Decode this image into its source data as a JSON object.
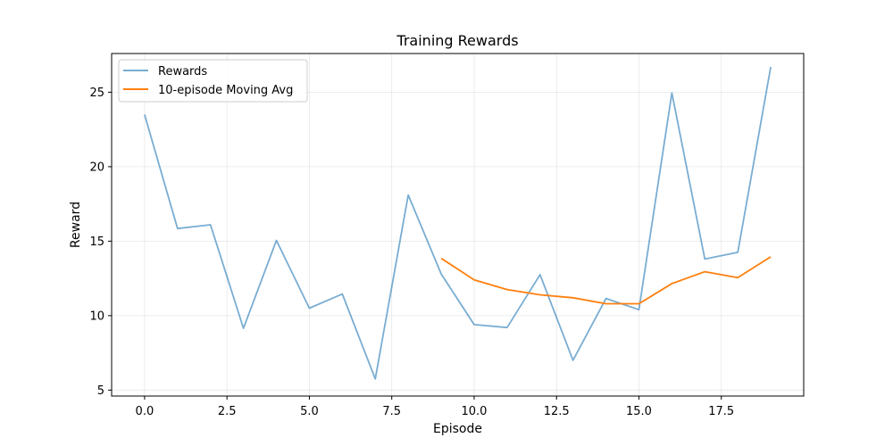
{
  "chart_data": {
    "type": "line",
    "title": "Training Rewards",
    "xlabel": "Episode",
    "ylabel": "Reward",
    "xlim": [
      -1,
      20
    ],
    "ylim": [
      4.6,
      27.6
    ],
    "xticks": [
      0.0,
      2.5,
      5.0,
      7.5,
      10.0,
      12.5,
      15.0,
      17.5
    ],
    "xtick_labels": [
      "0.0",
      "2.5",
      "5.0",
      "7.5",
      "10.0",
      "12.5",
      "15.0",
      "17.5"
    ],
    "yticks": [
      5,
      10,
      15,
      20,
      25
    ],
    "ytick_labels": [
      "5",
      "10",
      "15",
      "20",
      "25"
    ],
    "grid": true,
    "legend_position": "top-left",
    "series": [
      {
        "name": "Rewards",
        "color": "#1f77b4",
        "opacity": 0.6,
        "x": [
          0,
          1,
          2,
          3,
          4,
          5,
          6,
          7,
          8,
          9,
          10,
          11,
          12,
          13,
          14,
          15,
          16,
          17,
          18,
          19
        ],
        "values": [
          23.5,
          15.85,
          16.1,
          9.15,
          15.05,
          10.5,
          11.45,
          5.75,
          18.1,
          12.8,
          9.4,
          9.2,
          12.75,
          7.0,
          11.15,
          10.4,
          24.95,
          13.8,
          14.25,
          26.7
        ]
      },
      {
        "name": "10-episode Moving Avg",
        "color": "#ff7f0e",
        "opacity": 1,
        "x": [
          9,
          10,
          11,
          12,
          13,
          14,
          15,
          16,
          17,
          18,
          19
        ],
        "values": [
          13.85,
          12.4,
          11.75,
          11.4,
          11.2,
          10.8,
          10.8,
          12.15,
          12.95,
          12.55,
          13.95
        ]
      }
    ]
  }
}
